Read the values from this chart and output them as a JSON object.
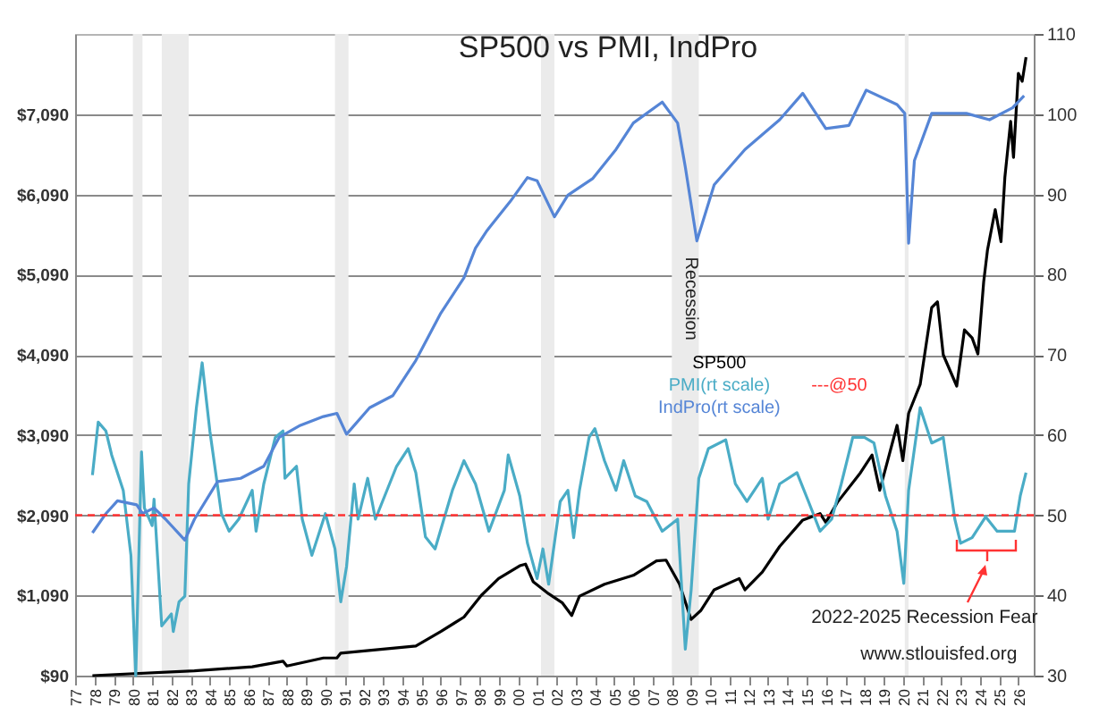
{
  "chart_data": {
    "type": "line",
    "title": "SP500 vs PMI, IndPro",
    "xlim": [
      1977,
      2026.8
    ],
    "xticks": [
      {
        "value": 1977,
        "label": "77"
      },
      {
        "value": 1978,
        "label": "78"
      },
      {
        "value": 1979,
        "label": "79"
      },
      {
        "value": 1980,
        "label": "80"
      },
      {
        "value": 1981,
        "label": "81"
      },
      {
        "value": 1982,
        "label": "82"
      },
      {
        "value": 1983,
        "label": "83"
      },
      {
        "value": 1984,
        "label": "84"
      },
      {
        "value": 1985,
        "label": "85"
      },
      {
        "value": 1986,
        "label": "86"
      },
      {
        "value": 1987,
        "label": "87"
      },
      {
        "value": 1988,
        "label": "88"
      },
      {
        "value": 1989,
        "label": "89"
      },
      {
        "value": 1990,
        "label": "90"
      },
      {
        "value": 1991,
        "label": "91"
      },
      {
        "value": 1992,
        "label": "92"
      },
      {
        "value": 1993,
        "label": "93"
      },
      {
        "value": 1994,
        "label": "94"
      },
      {
        "value": 1995,
        "label": "95"
      },
      {
        "value": 1996,
        "label": "96"
      },
      {
        "value": 1997,
        "label": "97"
      },
      {
        "value": 1998,
        "label": "98"
      },
      {
        "value": 1999,
        "label": "99"
      },
      {
        "value": 2000,
        "label": "00"
      },
      {
        "value": 2001,
        "label": "01"
      },
      {
        "value": 2002,
        "label": "02"
      },
      {
        "value": 2003,
        "label": "03"
      },
      {
        "value": 2004,
        "label": "04"
      },
      {
        "value": 2005,
        "label": "05"
      },
      {
        "value": 2006,
        "label": "06"
      },
      {
        "value": 2007,
        "label": "07"
      },
      {
        "value": 2008,
        "label": "08"
      },
      {
        "value": 2009,
        "label": "09"
      },
      {
        "value": 2010,
        "label": "10"
      },
      {
        "value": 2011,
        "label": "11"
      },
      {
        "value": 2012,
        "label": "12"
      },
      {
        "value": 2013,
        "label": "13"
      },
      {
        "value": 2014,
        "label": "14"
      },
      {
        "value": 2015,
        "label": "15"
      },
      {
        "value": 2016,
        "label": "16"
      },
      {
        "value": 2017,
        "label": "17"
      },
      {
        "value": 2018,
        "label": "18"
      },
      {
        "value": 2019,
        "label": "19"
      },
      {
        "value": 2020,
        "label": "20"
      },
      {
        "value": 2021,
        "label": "21"
      },
      {
        "value": 2022,
        "label": "22"
      },
      {
        "value": 2023,
        "label": "23"
      },
      {
        "value": 2024,
        "label": "24"
      },
      {
        "value": 2025,
        "label": "25"
      },
      {
        "value": 2026,
        "label": "26"
      }
    ],
    "ylim": [
      90,
      8090
    ],
    "yticks": [
      {
        "value": 90,
        "label": "$90"
      },
      {
        "value": 1090,
        "label": "$1,090"
      },
      {
        "value": 2090,
        "label": "$2,090"
      },
      {
        "value": 3090,
        "label": "$3,090"
      },
      {
        "value": 4090,
        "label": "$4,090"
      },
      {
        "value": 5090,
        "label": "$5,090"
      },
      {
        "value": 6090,
        "label": "$6,090"
      },
      {
        "value": 7090,
        "label": "$7,090"
      }
    ],
    "y2lim": [
      30,
      110
    ],
    "y2ticks": [
      30,
      40,
      50,
      60,
      70,
      80,
      90,
      100,
      110
    ],
    "grid": "y",
    "legend": "right",
    "line_style": "solid",
    "series": [
      {
        "name": "SP500",
        "color": "#000000",
        "x": [
          1977.9,
          1983.2,
          1986.2,
          1987.8,
          1988.0,
          1989.9,
          1990.6,
          1990.8,
          1994.7,
          1996.0,
          1997.2,
          1998.1,
          1999.0,
          2000.1,
          2000.4,
          2000.8,
          2001.6,
          2002.3,
          2002.8,
          2003.2,
          2004.5,
          2006.0,
          2007.2,
          2007.7,
          2008.4,
          2009.0,
          2009.5,
          2010.2,
          2011.5,
          2011.8,
          2012.7,
          2013.6,
          2014.8,
          2015.7,
          2016.0,
          2016.6,
          2017.8,
          2018.4,
          2018.8,
          2019.7,
          2020.0,
          2020.3,
          2020.9,
          2021.5,
          2021.8,
          2022.1,
          2022.8,
          2023.2,
          2023.6,
          2023.9,
          2024.2,
          2024.4,
          2024.8,
          2025.1,
          2025.3,
          2025.6,
          2025.75,
          2026.0,
          2026.2,
          2026.4
        ],
        "values": [
          90,
          150,
          200,
          270,
          210,
          310,
          310,
          370,
          460,
          640,
          820,
          1090,
          1300,
          1460,
          1480,
          1260,
          1110,
          1000,
          840,
          1080,
          1230,
          1340,
          1520,
          1530,
          1230,
          790,
          900,
          1160,
          1300,
          1160,
          1380,
          1700,
          2030,
          2110,
          2000,
          2250,
          2620,
          2840,
          2400,
          3210,
          2770,
          3360,
          3720,
          4680,
          4750,
          4090,
          3700,
          4400,
          4300,
          4100,
          5000,
          5400,
          5900,
          5500,
          6300,
          7000,
          6550,
          7600,
          7500,
          7800
        ]
      },
      {
        "name": "PMI(rt scale)",
        "color": "#4aacc6",
        "axis": "y2",
        "x": [
          1977.9,
          1978.2,
          1978.6,
          1978.9,
          1979.5,
          1979.9,
          1980.15,
          1980.45,
          1980.6,
          1981.0,
          1981.1,
          1981.5,
          1982.0,
          1982.1,
          1982.4,
          1982.7,
          1982.9,
          1983.3,
          1983.6,
          1984.0,
          1984.6,
          1985.0,
          1985.5,
          1986.2,
          1986.4,
          1986.8,
          1987.4,
          1987.8,
          1987.9,
          1988.5,
          1988.8,
          1989.3,
          1990.0,
          1990.5,
          1990.8,
          1991.1,
          1991.5,
          1991.7,
          1992.2,
          1992.6,
          1993.7,
          1994.3,
          1994.7,
          1995.2,
          1995.7,
          1996.6,
          1997.2,
          1997.8,
          1998.5,
          1999.3,
          1999.5,
          2000.1,
          2000.5,
          2001.0,
          2001.3,
          2001.6,
          2002.2,
          2002.6,
          2002.9,
          2003.2,
          2003.7,
          2004.0,
          2004.5,
          2005.1,
          2005.5,
          2006.1,
          2006.7,
          2007.5,
          2008.3,
          2008.7,
          2009.0,
          2009.4,
          2009.9,
          2010.8,
          2011.3,
          2011.9,
          2012.7,
          2013.0,
          2013.6,
          2014.5,
          2015.1,
          2015.7,
          2016.3,
          2016.8,
          2017.4,
          2018.0,
          2018.5,
          2019.1,
          2019.7,
          2020.05,
          2020.3,
          2020.9,
          2021.5,
          2022.1,
          2022.7,
          2023.0,
          2023.6,
          2024.3,
          2024.9,
          2025.8,
          2026.1,
          2026.4
        ],
        "values": [
          55.0,
          61.6,
          60.5,
          57.5,
          53.1,
          45.0,
          30,
          57.9,
          50.9,
          48.7,
          52,
          36.2,
          37.7,
          35.5,
          39.2,
          39.9,
          53.9,
          63.4,
          69.0,
          60.5,
          50.2,
          48.0,
          49.5,
          53.1,
          48,
          53.9,
          59.7,
          60.5,
          54.6,
          56.1,
          49.5,
          45.0,
          50.2,
          45.8,
          39.2,
          43.6,
          53.9,
          49.5,
          54.6,
          49.5,
          56.1,
          58.3,
          55.3,
          47.3,
          45.8,
          53.1,
          56.8,
          53.9,
          48,
          53.1,
          57.5,
          52.4,
          46.5,
          42.1,
          45.8,
          41.4,
          51.7,
          53.1,
          47.2,
          53.1,
          59.7,
          60.8,
          56.8,
          53.1,
          56.8,
          52.4,
          51.7,
          48,
          49.5,
          33.3,
          40.6,
          54.6,
          58.3,
          59.4,
          53.9,
          51.7,
          54.6,
          49.5,
          53.9,
          55.3,
          51.7,
          48,
          49.5,
          53.9,
          59.7,
          59.7,
          59.0,
          52.4,
          48,
          41.5,
          53.1,
          63.4,
          59.0,
          59.7,
          49.5,
          46.5,
          47.2,
          49.8,
          48,
          48,
          52.4,
          55.3
        ]
      },
      {
        "name": "IndPro(rt scale)",
        "color": "#5585d6",
        "axis": "y2",
        "x": [
          1977.9,
          1978.6,
          1979.2,
          1980.2,
          1980.5,
          1981.1,
          1981.7,
          1982.7,
          1983.2,
          1984.4,
          1985.6,
          1986.8,
          1987.6,
          1988.7,
          1989.9,
          1990.6,
          1991.1,
          1992.3,
          1993.5,
          1994.7,
          1996.0,
          1997.2,
          1997.8,
          1998.4,
          1999.6,
          2000.5,
          2001.0,
          2001.9,
          2002.6,
          2003.9,
          2005.1,
          2006.0,
          2007.5,
          2008.3,
          2008.7,
          2009.3,
          2010.2,
          2011.8,
          2013.6,
          2014.8,
          2016.0,
          2017.2,
          2018.1,
          2019.7,
          2020.1,
          2020.3,
          2020.6,
          2021.5,
          2023.3,
          2024.5,
          2025.7,
          2026.3
        ],
        "values": [
          47.8,
          50.2,
          51.8,
          51.3,
          50.2,
          50.9,
          49.5,
          46.9,
          49.5,
          54.2,
          54.6,
          56.1,
          59.7,
          61.2,
          62.3,
          62.7,
          60.1,
          63.4,
          64.9,
          69.3,
          75.2,
          79.6,
          83.3,
          85.5,
          89.1,
          92.1,
          91.7,
          87.2,
          89.9,
          92.0,
          95.6,
          98.9,
          101.5,
          98.9,
          93.4,
          84.2,
          91.2,
          95.6,
          99.3,
          102.6,
          98.2,
          98.6,
          103.0,
          101.2,
          100.1,
          83.9,
          94.2,
          100.1,
          100.1,
          99.3,
          100.8,
          102.3
        ]
      }
    ],
    "ref_lines": [
      {
        "axis": "y2",
        "value": 50,
        "label": "---@50",
        "color": "#ff3333",
        "line_style": "dashed"
      }
    ],
    "bands": [
      {
        "axis": "x",
        "from": 1980.0,
        "to": 1980.5,
        "color": "#ebebeb"
      },
      {
        "axis": "x",
        "from": 1981.5,
        "to": 1982.9,
        "color": "#ebebeb"
      },
      {
        "axis": "x",
        "from": 1990.5,
        "to": 1991.2,
        "color": "#ebebeb"
      },
      {
        "axis": "x",
        "from": 2001.2,
        "to": 2001.9,
        "color": "#ebebeb"
      },
      {
        "axis": "x",
        "from": 2008.0,
        "to": 2009.4,
        "color": "#ebebeb"
      },
      {
        "axis": "x",
        "from": 2020.1,
        "to": 2020.3,
        "color": "#ebebeb"
      }
    ],
    "annotations": [
      {
        "text": "Recession",
        "x": 2009.0,
        "y": 4790
      },
      "2022-2025 Recession Fear",
      "www.stlouisfed.org"
    ]
  }
}
